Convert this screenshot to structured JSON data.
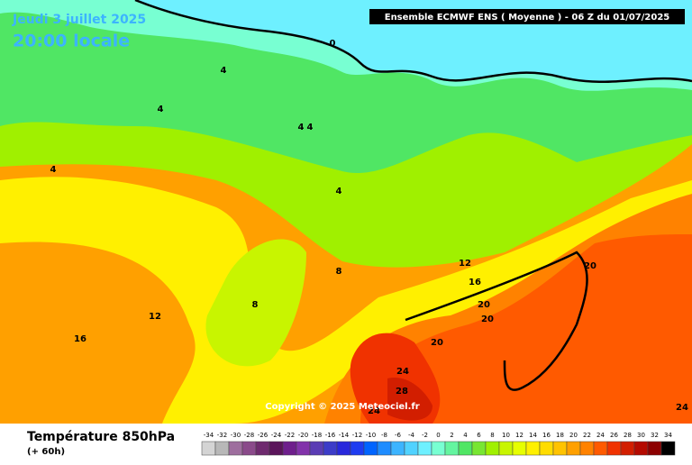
{
  "header": {
    "date": "Jeudi 3 juillet 2025",
    "time": "20:00 locale",
    "model": "Ensemble ECMWF ENS  ( Moyenne )  -  06 Z du 01/07/2025"
  },
  "map": {
    "copyright": "Copyright © 2025 Meteociel.fr",
    "contour_labels": [
      0,
      4,
      4,
      4,
      4,
      4,
      4,
      8,
      8,
      12,
      12,
      16,
      16,
      20,
      20,
      20,
      20,
      24,
      28,
      24,
      24
    ]
  },
  "footer": {
    "title": "Température 850hPa",
    "subtitle": "(+ 60h)"
  },
  "legend": {
    "values": [
      -34,
      -32,
      -30,
      -28,
      -26,
      -24,
      -22,
      -20,
      -18,
      -16,
      -14,
      -12,
      -10,
      -8,
      -6,
      -4,
      -2,
      0,
      2,
      4,
      6,
      8,
      10,
      12,
      14,
      16,
      18,
      20,
      22,
      24,
      26,
      28,
      30,
      32,
      34
    ],
    "colors": [
      "#d4d4d4",
      "#b8b8b8",
      "#9e6e9e",
      "#8a4a8a",
      "#6e2a6e",
      "#5a145a",
      "#6e1e8c",
      "#8232aa",
      "#5a3cb4",
      "#3c3cc8",
      "#2828dc",
      "#1e3cf0",
      "#0064ff",
      "#1e8cff",
      "#3cb4ff",
      "#50d2ff",
      "#6ef0ff",
      "#78ffd2",
      "#64f5a0",
      "#50e664",
      "#78e632",
      "#a0f000",
      "#c8f500",
      "#e6ff00",
      "#fff000",
      "#ffdc00",
      "#ffc300",
      "#ffa000",
      "#ff8200",
      "#ff5a00",
      "#f03200",
      "#d21e00",
      "#b40a00",
      "#8c0000",
      "#000000"
    ]
  }
}
